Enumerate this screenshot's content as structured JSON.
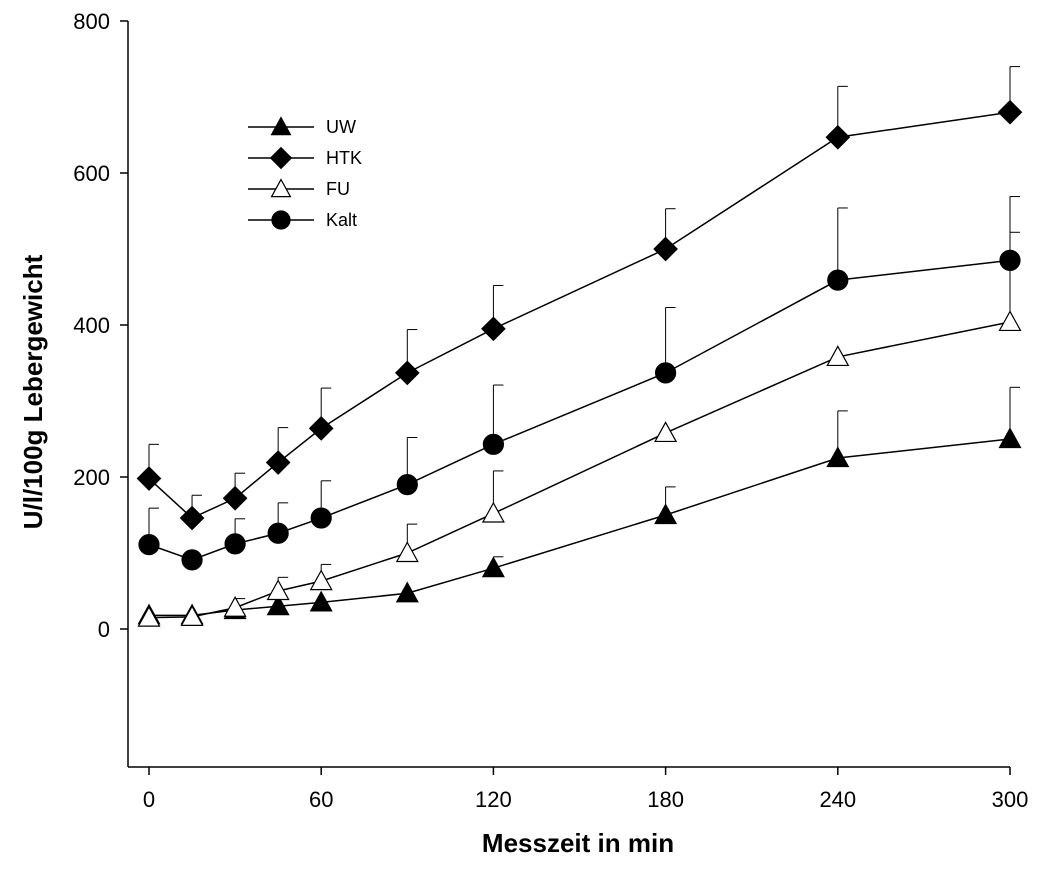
{
  "chart_data": {
    "type": "line",
    "title": "",
    "xlabel": "Messzeit in min",
    "ylabel": "U/l/100g Lebergewicht",
    "xlim": [
      -5,
      300
    ],
    "ylim": [
      -180,
      800
    ],
    "xticks": [
      0,
      60,
      120,
      180,
      240,
      300
    ],
    "yticks": [
      0,
      200,
      400,
      600,
      800
    ],
    "grid": false,
    "legend_position": "top-left",
    "x": [
      0,
      15,
      30,
      45,
      60,
      90,
      120,
      180,
      240,
      300
    ],
    "series": [
      {
        "name": "UW",
        "marker": "triangle-filled",
        "values": [
          18,
          18,
          25,
          30,
          35,
          47,
          80,
          150,
          225,
          250
        ],
        "error": [
          0,
          0,
          0,
          0,
          0,
          0,
          15,
          37,
          62,
          68
        ]
      },
      {
        "name": "HTK",
        "marker": "diamond-filled",
        "values": [
          198,
          146,
          172,
          219,
          264,
          337,
          395,
          500,
          647,
          680
        ],
        "error": [
          45,
          30,
          33,
          46,
          53,
          57,
          57,
          53,
          67,
          60
        ]
      },
      {
        "name": "FU",
        "marker": "triangle-open",
        "values": [
          15,
          16,
          28,
          50,
          63,
          100,
          152,
          258,
          358,
          404
        ],
        "error": [
          0,
          0,
          12,
          18,
          22,
          38,
          56,
          0,
          0,
          118
        ]
      },
      {
        "name": "Kalt",
        "marker": "circle-filled",
        "values": [
          111,
          91,
          112,
          126,
          146,
          190,
          243,
          337,
          459,
          485
        ],
        "error": [
          48,
          0,
          33,
          40,
          49,
          62,
          78,
          86,
          95,
          84
        ]
      }
    ],
    "x_tick_labels": [
      "0",
      "60",
      "120",
      "180",
      "240",
      "300"
    ],
    "y_tick_labels": [
      "0",
      "200",
      "400",
      "600",
      "800"
    ]
  }
}
